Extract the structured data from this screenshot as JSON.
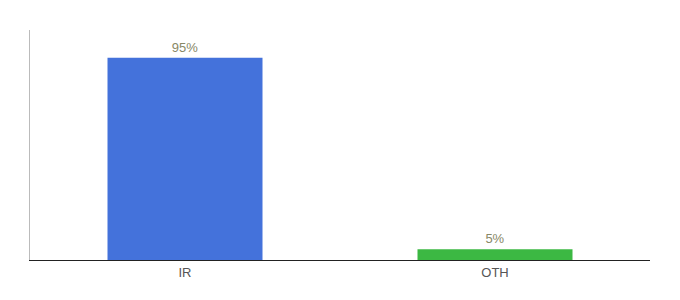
{
  "chart_data": {
    "type": "bar",
    "categories": [
      "IR",
      "OTH"
    ],
    "values": [
      95,
      5
    ],
    "value_labels": [
      "95%",
      "5%"
    ],
    "colors": [
      "#4472db",
      "#3cb843"
    ],
    "ylim": [
      0,
      108
    ],
    "grid": false,
    "data_labels": true,
    "tick_labels": "x"
  }
}
